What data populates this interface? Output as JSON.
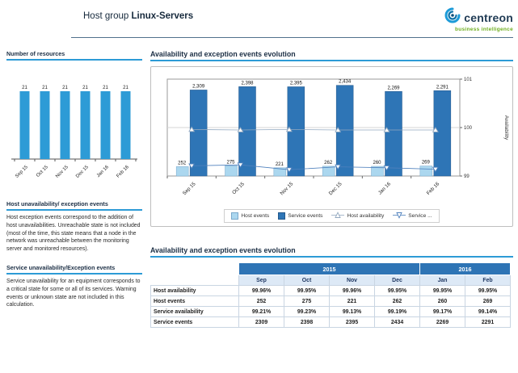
{
  "header": {
    "title_prefix": "Host group",
    "title_name": "Linux-Servers",
    "brand": "centreon",
    "brand_tagline": "business intelligence"
  },
  "colors": {
    "accent_rule_blue": "#2d9bd6",
    "resources_bar": "#2d9bd6",
    "host_events_bar": "#abd7ef",
    "service_events_bar": "#2e75b6",
    "host_availability_line": "#93a9c0",
    "service_availability_line": "#4f81bd",
    "table_year_header_bg": "#2e74b5",
    "table_month_header_bg": "#dde9f6",
    "brand_green": "#6fae1f",
    "brand_navy": "#213c55"
  },
  "sidebar": {
    "resources_title": "Number of resources",
    "host_title": "Host unavailability/ exception events",
    "host_text": "Host exception events correspond to the addition of host unavailabilities. Unreachable state is not included (most of the time, this state means that a node in the network was unreachable between the monitoring server and monitored resources).",
    "service_title": "Service unavailability/Exception events",
    "service_text": "Service unavailability for an equipment corresponds to a critical state for some or all of its services. Warning events or unknown state are not included in this calculation."
  },
  "main": {
    "chart_title": "Availability and exception events evolution",
    "table_title": "Availability and exception events evolution"
  },
  "chart_data": [
    {
      "name": "number_of_resources",
      "type": "bar",
      "title": "Number of resources",
      "categories": [
        "Sep 15",
        "Oct 15",
        "Nov 15",
        "Dec 15",
        "Jan 16",
        "Feb 16"
      ],
      "values": [
        21,
        21,
        21,
        21,
        21,
        21
      ],
      "value_labels": [
        "21",
        "21",
        "21",
        "21",
        "21",
        "21"
      ],
      "bar_color": "#2d9bd6",
      "ylim": [
        0,
        24
      ],
      "grid": false,
      "legend_position": "none"
    },
    {
      "name": "availability_and_exception_events_evolution",
      "type": "bar",
      "title": "Availability and exception events evolution",
      "categories": [
        "Sep 15",
        "Oct 15",
        "Nov 15",
        "Dec 15",
        "Jan 16",
        "Feb 16"
      ],
      "series": [
        {
          "name": "Host events",
          "legend_label": "Host events",
          "type": "bar",
          "values": [
            252,
            275,
            221,
            262,
            260,
            269
          ],
          "labels": [
            "252",
            "275",
            "221",
            "262",
            "260",
            "269"
          ],
          "color": "#abd7ef"
        },
        {
          "name": "Service events",
          "legend_label": "Service events",
          "type": "bar",
          "values": [
            2309,
            2398,
            2395,
            2434,
            2269,
            2291
          ],
          "labels": [
            "2,309",
            "2,398",
            "2,395",
            "2,434",
            "2,269",
            "2,291"
          ],
          "color": "#2e75b6"
        },
        {
          "name": "Host availability",
          "legend_label": "Host availability",
          "type": "line",
          "marker": "triangle-up",
          "values": [
            99.96,
            99.95,
            99.96,
            99.95,
            99.95,
            99.95
          ],
          "color": "#93a9c0"
        },
        {
          "name": "Service availability",
          "legend_label": "Service ...",
          "type": "line",
          "marker": "triangle-down",
          "values": [
            99.21,
            99.23,
            99.13,
            99.19,
            99.17,
            99.14
          ],
          "color": "#4f81bd"
        }
      ],
      "bar_axis_max": 2600,
      "availability_axis": {
        "label": "Availability",
        "min": 99,
        "max": 101,
        "ticks": [
          99,
          100,
          101
        ]
      },
      "grid": true,
      "legend_position": "bottom"
    }
  ],
  "table": {
    "year_groups": [
      {
        "label": "2015",
        "span": 4
      },
      {
        "label": "2016",
        "span": 2
      }
    ],
    "months": [
      "Sep",
      "Oct",
      "Nov",
      "Dec",
      "Jan",
      "Feb"
    ],
    "rows": [
      {
        "label": "Host availability",
        "values": [
          "99.96%",
          "99.95%",
          "99.96%",
          "99.95%",
          "99.95%",
          "99.95%"
        ]
      },
      {
        "label": "Host events",
        "values": [
          "252",
          "275",
          "221",
          "262",
          "260",
          "269"
        ]
      },
      {
        "label": "Service availability",
        "values": [
          "99.21%",
          "99.23%",
          "99.13%",
          "99.19%",
          "99.17%",
          "99.14%"
        ]
      },
      {
        "label": "Service events",
        "values": [
          "2309",
          "2398",
          "2395",
          "2434",
          "2269",
          "2291"
        ]
      }
    ]
  }
}
